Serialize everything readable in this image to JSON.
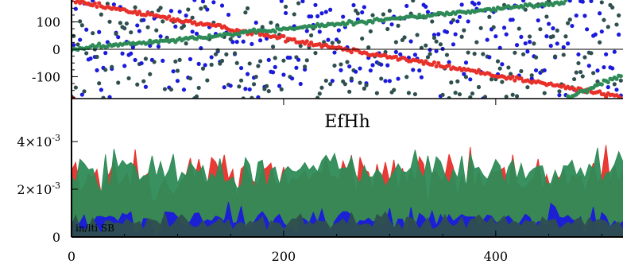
{
  "chart_data": [
    {
      "type": "scatter",
      "panel": "phase",
      "title": "",
      "xlabel": "",
      "ylabel": "",
      "xlim": [
        0,
        520
      ],
      "ylim": [
        -180,
        180
      ],
      "y_ticks": [
        {
          "value": 100,
          "label": "100"
        },
        {
          "value": 0,
          "label": "0"
        },
        {
          "value": -100,
          "label": "-100"
        }
      ],
      "zero_line": true,
      "series_colors": [
        "#e8302a",
        "#2e8b57",
        "#1a1adc",
        "#2f4f4f"
      ],
      "trends": {
        "red": {
          "start": 175,
          "end": -175,
          "wrap": true
        },
        "green": {
          "start": 0,
          "end": 180,
          "wrap_at": 465,
          "after_wrap_start": -180
        }
      },
      "points_per_series": 260
    },
    {
      "type": "area",
      "panel": "amplitude",
      "title": "EfHh",
      "xlabel": "",
      "ylabel": "",
      "xlim": [
        0,
        520
      ],
      "ylim": [
        0,
        0.0058
      ],
      "x_ticks": [
        {
          "value": 0,
          "label": "0"
        },
        {
          "value": 200,
          "label": "200"
        },
        {
          "value": 400,
          "label": "400"
        }
      ],
      "y_ticks": [
        {
          "value": 0,
          "label": "0",
          "exp": ""
        },
        {
          "value": 0.002,
          "label": "2×10",
          "exp": "-3"
        },
        {
          "value": 0.004,
          "label": "4×10",
          "exp": "-3"
        }
      ],
      "annotation": "in/lti SB",
      "series_colors": [
        "#e8302a",
        "#2e8b57",
        "#1a1adc",
        "#2f4f4f"
      ],
      "levels": {
        "red": {
          "mean": 0.0026,
          "spread": 0.0011
        },
        "green": {
          "mean": 0.0028,
          "spread": 0.0009
        },
        "blue": {
          "mean": 0.0007,
          "spread": 0.0006
        },
        "darkslate": {
          "mean": 0.0006,
          "spread": 0.0004
        }
      }
    }
  ]
}
